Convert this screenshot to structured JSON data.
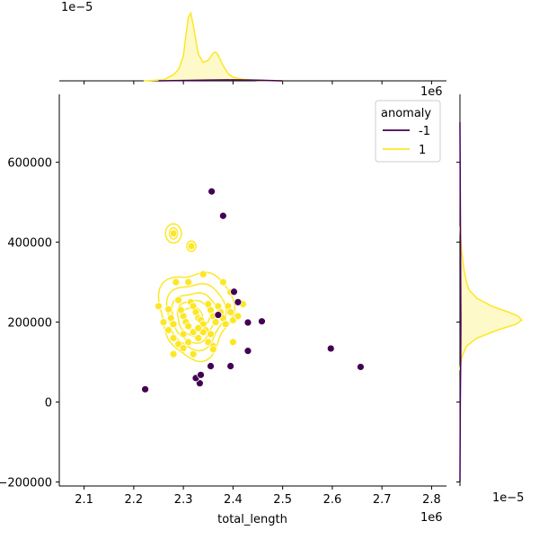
{
  "chart_data": {
    "type": "scatter",
    "xlabel": "total_length",
    "ylabel": "",
    "x_offset_label": "1e6",
    "y_offset_label": "",
    "top_marginal_offset_label": "1e−5",
    "right_marginal_offset_label": "1e−5",
    "top_marginal_corner_label": "1e6",
    "xlim": [
      2.05,
      2.83
    ],
    "ylim": [
      -210000,
      770000
    ],
    "x_ticks": [
      2.1,
      2.2,
      2.3,
      2.4,
      2.5,
      2.6,
      2.7,
      2.8
    ],
    "x_tick_labels": [
      "2.1",
      "2.2",
      "2.3",
      "2.4",
      "2.5",
      "2.6",
      "2.7",
      "2.8"
    ],
    "y_ticks": [
      -200000,
      0,
      200000,
      400000,
      600000
    ],
    "y_tick_labels": [
      "−200000",
      "0",
      "200000",
      "400000",
      "600000"
    ],
    "legend": {
      "title": "anomaly",
      "placement": "top-right",
      "entries": [
        {
          "label": "-1",
          "color": "#440154"
        },
        {
          "label": "1",
          "color": "#fde725"
        }
      ]
    },
    "series": [
      {
        "name": "-1",
        "color": "#440154",
        "points": [
          [
            2.223,
            32000
          ],
          [
            2.333,
            47000
          ],
          [
            2.325,
            60000
          ],
          [
            2.335,
            68000
          ],
          [
            2.355,
            90000
          ],
          [
            2.395,
            90000
          ],
          [
            2.37,
            218000
          ],
          [
            2.402,
            276000
          ],
          [
            2.41,
            250000
          ],
          [
            2.43,
            199000
          ],
          [
            2.458,
            202000
          ],
          [
            2.43,
            128000
          ],
          [
            2.357,
            527000
          ],
          [
            2.38,
            466000
          ],
          [
            2.597,
            134000
          ],
          [
            2.657,
            88000
          ]
        ]
      },
      {
        "name": "1",
        "color": "#fde725",
        "points": [
          [
            2.28,
            422000
          ],
          [
            2.316,
            390000
          ],
          [
            2.34,
            320000
          ],
          [
            2.31,
            300000
          ],
          [
            2.285,
            300000
          ],
          [
            2.25,
            240000
          ],
          [
            2.27,
            232000
          ],
          [
            2.275,
            210000
          ],
          [
            2.28,
            195000
          ],
          [
            2.29,
            255000
          ],
          [
            2.295,
            230000
          ],
          [
            2.3,
            215000
          ],
          [
            2.305,
            200000
          ],
          [
            2.31,
            190000
          ],
          [
            2.315,
            250000
          ],
          [
            2.32,
            240000
          ],
          [
            2.325,
            225000
          ],
          [
            2.33,
            210000
          ],
          [
            2.335,
            205000
          ],
          [
            2.34,
            195000
          ],
          [
            2.345,
            180000
          ],
          [
            2.35,
            245000
          ],
          [
            2.355,
            230000
          ],
          [
            2.36,
            215000
          ],
          [
            2.365,
            200000
          ],
          [
            2.37,
            240000
          ],
          [
            2.375,
            225000
          ],
          [
            2.38,
            210000
          ],
          [
            2.385,
            195000
          ],
          [
            2.39,
            240000
          ],
          [
            2.395,
            225000
          ],
          [
            2.4,
            205000
          ],
          [
            2.28,
            160000
          ],
          [
            2.29,
            145000
          ],
          [
            2.3,
            135000
          ],
          [
            2.31,
            150000
          ],
          [
            2.32,
            120000
          ],
          [
            2.33,
            160000
          ],
          [
            2.34,
            175000
          ],
          [
            2.35,
            150000
          ],
          [
            2.36,
            140000
          ],
          [
            2.28,
            120000
          ],
          [
            2.26,
            200000
          ],
          [
            2.27,
            180000
          ],
          [
            2.3,
            170000
          ],
          [
            2.32,
            175000
          ],
          [
            2.33,
            185000
          ],
          [
            2.355,
            170000
          ],
          [
            2.38,
            300000
          ],
          [
            2.41,
            215000
          ],
          [
            2.42,
            245000
          ],
          [
            2.4,
            150000
          ],
          [
            2.395,
            275000
          ],
          [
            2.36,
            132000
          ]
        ]
      }
    ],
    "top_marginal": {
      "type": "kde",
      "series": [
        {
          "name": "1",
          "color": "#fde725",
          "x": [
            2.22,
            2.26,
            2.28,
            2.29,
            2.3,
            2.305,
            2.31,
            2.315,
            2.32,
            2.33,
            2.34,
            2.35,
            2.36,
            2.365,
            2.37,
            2.38,
            2.39,
            2.4,
            2.42,
            2.45,
            2.5
          ],
          "density": [
            0.0,
            0.05,
            0.3,
            0.55,
            1.2,
            2.2,
            3.1,
            3.3,
            2.7,
            1.3,
            0.9,
            1.0,
            1.35,
            1.4,
            1.25,
            0.75,
            0.35,
            0.18,
            0.07,
            0.02,
            0.0
          ]
        },
        {
          "name": "-1",
          "color": "#440154",
          "x": [
            2.25,
            2.35,
            2.4,
            2.45,
            2.5
          ],
          "density": [
            0.0,
            0.04,
            0.05,
            0.03,
            0.0
          ]
        }
      ]
    },
    "right_marginal": {
      "type": "kde",
      "series": [
        {
          "name": "1",
          "color": "#fde725",
          "y": [
            80000,
            110000,
            140000,
            160000,
            180000,
            195000,
            205000,
            215000,
            225000,
            240000,
            260000,
            280000,
            300000,
            330000,
            380000,
            420000,
            440000
          ],
          "density": [
            0.0,
            0.08,
            0.35,
            0.9,
            2.0,
            3.0,
            3.3,
            3.1,
            2.6,
            1.7,
            0.9,
            0.5,
            0.35,
            0.22,
            0.08,
            0.03,
            0.0
          ]
        },
        {
          "name": "-1",
          "color": "#440154",
          "y": [
            -200000,
            0,
            100000,
            200000,
            300000,
            500000,
            700000
          ],
          "density": [
            0.0,
            0.02,
            0.04,
            0.05,
            0.04,
            0.02,
            0.0
          ]
        }
      ]
    }
  }
}
